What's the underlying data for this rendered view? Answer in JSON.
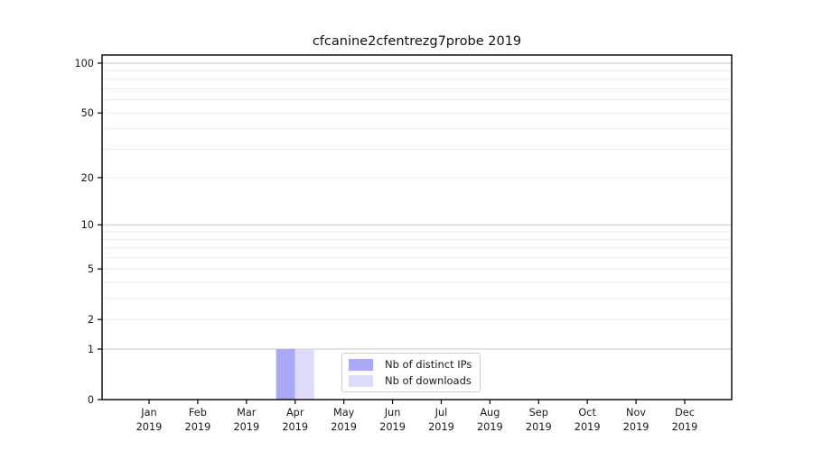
{
  "window": {
    "background": "#ffffff"
  },
  "chart_data": {
    "type": "bar",
    "title": "cfcanine2cfentrezg7probe 2019",
    "x_axis": {
      "categories": [
        "Jan",
        "Feb",
        "Mar",
        "Apr",
        "May",
        "Jun",
        "Jul",
        "Aug",
        "Sep",
        "Oct",
        "Nov",
        "Dec"
      ],
      "year_line": "2019"
    },
    "y_axis": {
      "scale": "log1p",
      "ticks": [
        0,
        1,
        2,
        5,
        10,
        20,
        50,
        100
      ],
      "major_gridlines": [
        1,
        10,
        100
      ],
      "minor_gridlines": [
        2,
        3,
        4,
        5,
        6,
        7,
        8,
        9,
        20,
        30,
        40,
        50,
        60,
        70,
        80,
        90
      ],
      "ylim": [
        0,
        112
      ],
      "grid": true
    },
    "series": [
      {
        "name": "Nb of distinct IPs",
        "color": "#a9a9f7",
        "values": [
          0,
          0,
          0,
          1,
          0,
          0,
          0,
          0,
          0,
          0,
          0,
          0
        ]
      },
      {
        "name": "Nb of downloads",
        "color": "#dcdcfa",
        "values": [
          0,
          0,
          0,
          1,
          0,
          0,
          0,
          0,
          0,
          0,
          0,
          0
        ]
      }
    ],
    "legend": {
      "position": "lower center",
      "entries": [
        "Nb of distinct IPs",
        "Nb of downloads"
      ]
    }
  },
  "colors": {
    "grid_major": "#c6c6c6",
    "grid_minor": "#ebebeb",
    "spine": "#000000",
    "tick_text": "#1a1a1a",
    "legend_border": "#cccccc"
  }
}
